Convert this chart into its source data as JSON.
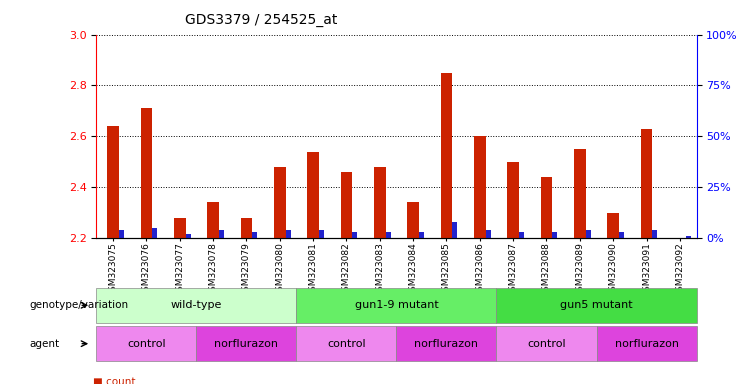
{
  "title": "GDS3379 / 254525_at",
  "samples": [
    "GSM323075",
    "GSM323076",
    "GSM323077",
    "GSM323078",
    "GSM323079",
    "GSM323080",
    "GSM323081",
    "GSM323082",
    "GSM323083",
    "GSM323084",
    "GSM323085",
    "GSM323086",
    "GSM323087",
    "GSM323088",
    "GSM323089",
    "GSM323090",
    "GSM323091",
    "GSM323092"
  ],
  "count_values": [
    2.64,
    2.71,
    2.28,
    2.34,
    2.28,
    2.48,
    2.54,
    2.46,
    2.48,
    2.34,
    2.85,
    2.6,
    2.5,
    2.44,
    2.55,
    2.3,
    2.63,
    2.2
  ],
  "percentile_values": [
    4,
    5,
    2,
    4,
    3,
    4,
    4,
    3,
    3,
    3,
    8,
    4,
    3,
    3,
    4,
    3,
    4,
    1
  ],
  "ylim_left": [
    2.2,
    3.0
  ],
  "ylim_right": [
    0,
    100
  ],
  "yticks_left": [
    2.2,
    2.4,
    2.6,
    2.8,
    3.0
  ],
  "yticks_right": [
    0,
    25,
    50,
    75,
    100
  ],
  "ytick_labels_right": [
    "0%",
    "25%",
    "50%",
    "75%",
    "100%"
  ],
  "bar_color_red": "#CC2200",
  "bar_color_blue": "#2222CC",
  "background_color": "#ffffff",
  "genotype_groups": [
    {
      "label": "wild-type",
      "start": 0,
      "end": 5,
      "color": "#ccffcc"
    },
    {
      "label": "gun1-9 mutant",
      "start": 6,
      "end": 11,
      "color": "#66ee66"
    },
    {
      "label": "gun5 mutant",
      "start": 12,
      "end": 17,
      "color": "#44dd44"
    }
  ],
  "agent_groups": [
    {
      "label": "control",
      "start": 0,
      "end": 2,
      "color": "#ee88ee"
    },
    {
      "label": "norflurazon",
      "start": 3,
      "end": 5,
      "color": "#dd44dd"
    },
    {
      "label": "control",
      "start": 6,
      "end": 8,
      "color": "#ee88ee"
    },
    {
      "label": "norflurazon",
      "start": 9,
      "end": 11,
      "color": "#dd44dd"
    },
    {
      "label": "control",
      "start": 12,
      "end": 14,
      "color": "#ee88ee"
    },
    {
      "label": "norflurazon",
      "start": 15,
      "end": 17,
      "color": "#dd44dd"
    }
  ]
}
